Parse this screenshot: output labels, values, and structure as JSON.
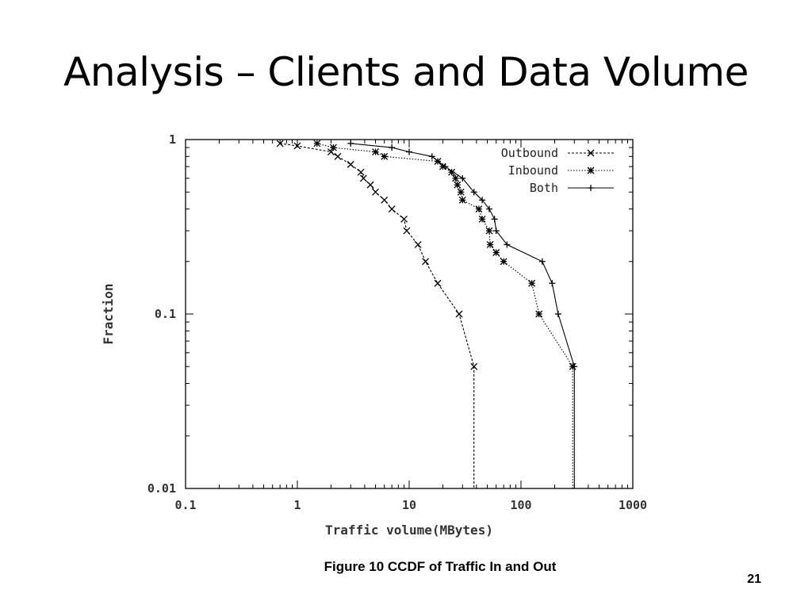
{
  "slide": {
    "title": "Analysis – Clients and Data Volume",
    "caption": "Figure 10  CCDF of Traffic In and Out",
    "page_number": "21"
  },
  "chart_data": {
    "type": "line",
    "xlabel": "Traffic volume(MBytes)",
    "ylabel": "Fraction",
    "x_scale": "log",
    "y_scale": "log",
    "xlim": [
      0.1,
      1000
    ],
    "ylim": [
      0.01,
      1
    ],
    "x_ticks": [
      0.1,
      1,
      10,
      100,
      1000
    ],
    "x_tick_labels": [
      "0.1",
      "1",
      "10",
      "100",
      "1000"
    ],
    "y_ticks": [
      0.01,
      0.1,
      1
    ],
    "y_tick_labels": [
      "0.01",
      "0.1",
      "1"
    ],
    "legend_position": "top-right",
    "grid": false,
    "series": [
      {
        "name": "Outbound",
        "marker": "x",
        "dash": "dashed",
        "points": [
          [
            0.7,
            0.95
          ],
          [
            1.0,
            0.92
          ],
          [
            2.0,
            0.85
          ],
          [
            2.3,
            0.8
          ],
          [
            3.0,
            0.72
          ],
          [
            3.7,
            0.65
          ],
          [
            3.9,
            0.6
          ],
          [
            4.5,
            0.55
          ],
          [
            5.0,
            0.5
          ],
          [
            6.0,
            0.45
          ],
          [
            7.0,
            0.4
          ],
          [
            9.0,
            0.35
          ],
          [
            9.5,
            0.3
          ],
          [
            12,
            0.25
          ],
          [
            14,
            0.2
          ],
          [
            18,
            0.15
          ],
          [
            28,
            0.1
          ],
          [
            38,
            0.05
          ],
          [
            38,
            0.01
          ]
        ]
      },
      {
        "name": "Inbound",
        "marker": "*",
        "dash": "dotted",
        "points": [
          [
            1.5,
            0.95
          ],
          [
            2.1,
            0.9
          ],
          [
            5.0,
            0.85
          ],
          [
            6.0,
            0.8
          ],
          [
            18,
            0.75
          ],
          [
            20,
            0.7
          ],
          [
            24,
            0.65
          ],
          [
            26,
            0.6
          ],
          [
            27,
            0.55
          ],
          [
            29,
            0.5
          ],
          [
            30,
            0.45
          ],
          [
            42,
            0.4
          ],
          [
            45,
            0.35
          ],
          [
            52,
            0.3
          ],
          [
            53,
            0.25
          ],
          [
            60,
            0.225
          ],
          [
            70,
            0.2
          ],
          [
            125,
            0.15
          ],
          [
            145,
            0.1
          ],
          [
            290,
            0.05
          ],
          [
            290,
            0.01
          ]
        ]
      },
      {
        "name": "Both",
        "marker": "+",
        "dash": "solid",
        "points": [
          [
            3.0,
            0.95
          ],
          [
            7.0,
            0.9
          ],
          [
            10,
            0.85
          ],
          [
            16,
            0.8
          ],
          [
            21,
            0.7
          ],
          [
            30,
            0.6
          ],
          [
            38,
            0.5
          ],
          [
            45,
            0.45
          ],
          [
            52,
            0.4
          ],
          [
            58,
            0.35
          ],
          [
            60,
            0.3
          ],
          [
            75,
            0.25
          ],
          [
            155,
            0.2
          ],
          [
            190,
            0.15
          ],
          [
            215,
            0.1
          ],
          [
            300,
            0.05
          ],
          [
            300,
            0.01
          ]
        ]
      }
    ]
  }
}
